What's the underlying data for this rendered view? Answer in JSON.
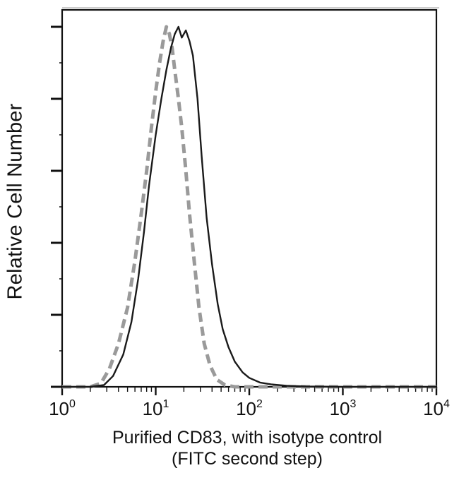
{
  "chart_data": {
    "type": "line",
    "title": "",
    "ylabel": "Relative Cell Number",
    "xlabel_lines": [
      "Purified CD83, with isotype control",
      "(FITC second step)"
    ],
    "x_scale": "log",
    "xlim": [
      1,
      10000
    ],
    "ylim": [
      0,
      100
    ],
    "x_ticks": [
      {
        "base": "10",
        "exp": "0",
        "value": 1
      },
      {
        "base": "10",
        "exp": "1",
        "value": 10
      },
      {
        "base": "10",
        "exp": "2",
        "value": 100
      },
      {
        "base": "10",
        "exp": "3",
        "value": 1000
      },
      {
        "base": "10",
        "exp": "4",
        "value": 10000
      }
    ],
    "grid": false,
    "legend": "none",
    "series": [
      {
        "style": "solid",
        "color": "#1a1a1a",
        "x": [
          1,
          2,
          2.8,
          3.5,
          4.5,
          5.5,
          6.5,
          7.5,
          8.5,
          10,
          11.5,
          13,
          14.5,
          16,
          17.5,
          19,
          21,
          23,
          25,
          28,
          31,
          35,
          40,
          46,
          52,
          60,
          70,
          85,
          100,
          130,
          170,
          250,
          400,
          1000,
          10000
        ],
        "y": [
          0,
          0,
          0.5,
          3,
          9,
          18,
          30,
          43,
          56,
          70,
          80,
          88,
          94,
          98,
          100,
          97,
          99,
          96,
          92,
          80,
          64,
          47,
          34,
          23,
          16,
          11,
          7,
          4,
          2.5,
          1.2,
          0.7,
          0.3,
          0.1,
          0,
          0
        ]
      },
      {
        "style": "dashed",
        "color": "#9a9a9a",
        "x": [
          1,
          2,
          2.6,
          3.2,
          4,
          5,
          6,
          7,
          8,
          9,
          10,
          11,
          12,
          13,
          14,
          15,
          16,
          17.5,
          19,
          21,
          23,
          26,
          29,
          33,
          38,
          45,
          55,
          70,
          100,
          10000
        ],
        "y": [
          0,
          0,
          1,
          5,
          12,
          22,
          35,
          48,
          60,
          72,
          82,
          90,
          96,
          100,
          98,
          94,
          88,
          80,
          72,
          60,
          48,
          34,
          22,
          12,
          6,
          2,
          0.5,
          0,
          0,
          0
        ]
      }
    ]
  }
}
